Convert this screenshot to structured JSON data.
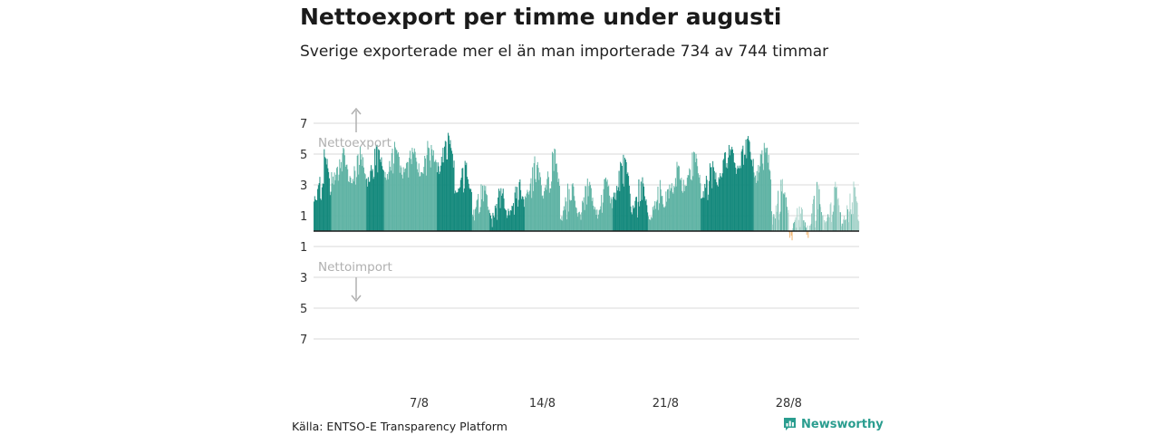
{
  "title": "Nettoexport per timme under augusti",
  "subtitle": "Sverige exporterade mer el än man importerade 734 av 744 timmar",
  "source": "Källa: ENTSO-E Transparency Platform",
  "brand": "Newsworthy",
  "colors": {
    "export_dark": "#14897c",
    "export_mid": "#5fb3a4",
    "export_light": "#a8d4cb",
    "import": "#f2b26b",
    "grid": "#d9d9d9",
    "axis": "#1a1a1a",
    "annotation": "#b0b0b0",
    "brand": "#2a9d8f"
  },
  "chart_data": {
    "type": "bar",
    "xlabel": "",
    "ylabel": "",
    "xlim": [
      0,
      744
    ],
    "ylim": [
      -7,
      7
    ],
    "y_ticks": [
      {
        "value": 7,
        "label": "7"
      },
      {
        "value": 5,
        "label": "5"
      },
      {
        "value": 3,
        "label": "3"
      },
      {
        "value": 1,
        "label": "1"
      },
      {
        "value": -1,
        "label": "1"
      },
      {
        "value": -3,
        "label": "3"
      },
      {
        "value": -5,
        "label": "5"
      },
      {
        "value": -7,
        "label": "7"
      }
    ],
    "x_ticks": [
      {
        "hour": 144,
        "label": "7/8"
      },
      {
        "hour": 312,
        "label": "14/8"
      },
      {
        "hour": 480,
        "label": "21/8"
      },
      {
        "hour": 648,
        "label": "28/8"
      }
    ],
    "annotations": {
      "export": "Nettoexport",
      "import": "Nettoimport"
    },
    "daily_peaks": [
      5.0,
      5.3,
      5.1,
      5.5,
      5.4,
      5.6,
      5.7,
      6.2,
      4.2,
      3.2,
      2.9,
      3.2,
      4.5,
      5.3,
      3.2,
      3.1,
      3.3,
      4.8,
      3.3,
      3.1,
      4.6,
      4.9,
      4.4,
      5.9,
      6.3,
      5.7,
      3.0,
      1.6,
      2.9,
      2.9,
      3.1
    ],
    "daily_troughs": [
      2.0,
      3.3,
      3.1,
      3.3,
      3.5,
      3.7,
      3.8,
      4.0,
      2.2,
      1.0,
      0.6,
      1.2,
      2.3,
      2.4,
      1.0,
      1.0,
      1.1,
      2.2,
      1.2,
      0.9,
      2.3,
      2.8,
      2.4,
      3.6,
      3.9,
      3.3,
      0.8,
      -0.3,
      -0.1,
      0.3,
      0.5
    ],
    "summary": {
      "export_hours": 734,
      "total_hours": 744
    }
  }
}
